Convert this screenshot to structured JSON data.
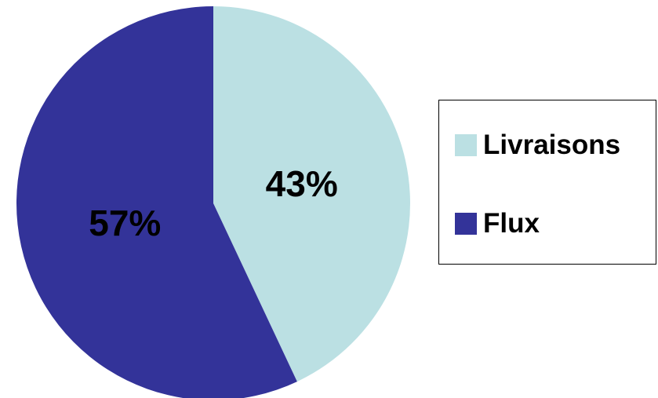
{
  "chart_data": {
    "type": "pie",
    "title": "",
    "legend_position": "right",
    "start_angle": "12 o'clock, clockwise",
    "slices": [
      {
        "name": "Livraisons",
        "value": 43,
        "label": "43%",
        "color": "#bbe0e3"
      },
      {
        "name": "Flux",
        "value": 57,
        "label": "57%",
        "color": "#333399"
      }
    ]
  }
}
